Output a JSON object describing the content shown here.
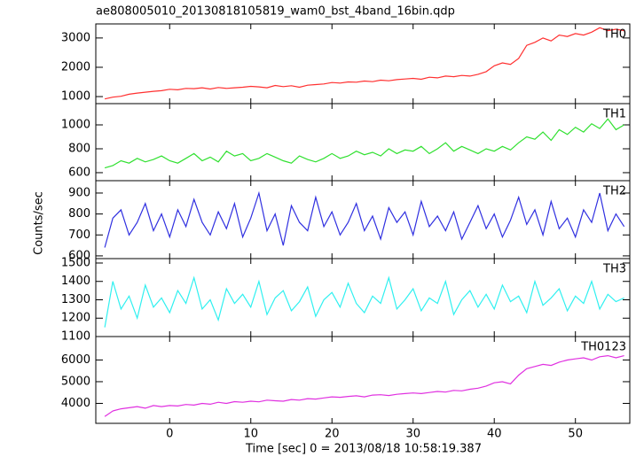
{
  "chart_data": {
    "type": "line",
    "title": "ae808005010_20130818105819_wam0_bst_4band_16bin.qdp",
    "xlabel": "Time [sec] 0 = 2013/08/18 10:58:19.387",
    "ylabel": "Counts/sec",
    "xlim": [
      -9.1,
      56.7
    ],
    "xticks": [
      0,
      10,
      20,
      30,
      40,
      50
    ],
    "x": [
      -8,
      -7,
      -6,
      -5,
      -4,
      -3,
      -2,
      -1,
      0,
      1,
      2,
      3,
      4,
      5,
      6,
      7,
      8,
      9,
      10,
      11,
      12,
      13,
      14,
      15,
      16,
      17,
      18,
      19,
      20,
      21,
      22,
      23,
      24,
      25,
      26,
      27,
      28,
      29,
      30,
      31,
      32,
      33,
      34,
      35,
      36,
      37,
      38,
      39,
      40,
      41,
      42,
      43,
      44,
      45,
      46,
      47,
      48,
      49,
      50,
      51,
      52,
      53,
      54,
      55,
      56
    ],
    "panels": [
      {
        "name": "TH0",
        "color": "#ff3030",
        "ylim": [
          760,
          3480
        ],
        "yticks": [
          1000,
          2000,
          3000
        ],
        "values": [
          920,
          980,
          1010,
          1080,
          1120,
          1150,
          1180,
          1200,
          1250,
          1230,
          1280,
          1270,
          1300,
          1260,
          1310,
          1280,
          1300,
          1320,
          1350,
          1330,
          1300,
          1380,
          1340,
          1370,
          1320,
          1390,
          1410,
          1430,
          1480,
          1460,
          1500,
          1490,
          1530,
          1510,
          1560,
          1540,
          1580,
          1600,
          1620,
          1590,
          1660,
          1640,
          1700,
          1680,
          1720,
          1700,
          1760,
          1850,
          2050,
          2150,
          2100,
          2300,
          2750,
          2850,
          3000,
          2900,
          3100,
          3050,
          3150,
          3100,
          3200,
          3350,
          3250,
          3300,
          3250
        ]
      },
      {
        "name": "TH1",
        "color": "#30e030",
        "ylim": [
          533,
          1178
        ],
        "yticks": [
          600,
          800,
          1000
        ],
        "values": [
          640,
          660,
          700,
          680,
          720,
          690,
          710,
          740,
          700,
          680,
          720,
          760,
          700,
          730,
          690,
          780,
          740,
          760,
          700,
          720,
          760,
          730,
          700,
          680,
          740,
          710,
          690,
          720,
          760,
          720,
          740,
          780,
          750,
          770,
          740,
          800,
          760,
          790,
          780,
          820,
          760,
          800,
          850,
          780,
          820,
          790,
          760,
          800,
          780,
          820,
          790,
          850,
          900,
          880,
          940,
          870,
          960,
          920,
          980,
          940,
          1010,
          970,
          1050,
          960,
          1000
        ]
      },
      {
        "name": "TH2",
        "color": "#3030e0",
        "ylim": [
          587,
          959
        ],
        "yticks": [
          600,
          700,
          800,
          900
        ],
        "values": [
          640,
          780,
          820,
          700,
          760,
          850,
          720,
          800,
          690,
          820,
          740,
          870,
          760,
          700,
          810,
          730,
          850,
          690,
          780,
          900,
          720,
          800,
          650,
          840,
          760,
          720,
          880,
          740,
          810,
          700,
          760,
          850,
          720,
          790,
          680,
          830,
          760,
          810,
          700,
          860,
          740,
          790,
          720,
          810,
          680,
          760,
          840,
          730,
          800,
          690,
          770,
          880,
          750,
          820,
          700,
          860,
          730,
          780,
          690,
          820,
          760,
          900,
          720,
          800,
          740
        ]
      },
      {
        "name": "TH3",
        "color": "#30f0f0",
        "ylim": [
          1100,
          1524
        ],
        "yticks": [
          1100,
          1200,
          1300,
          1400,
          1500
        ],
        "values": [
          1150,
          1400,
          1250,
          1320,
          1200,
          1380,
          1260,
          1310,
          1230,
          1350,
          1280,
          1420,
          1250,
          1300,
          1190,
          1360,
          1280,
          1330,
          1260,
          1400,
          1220,
          1310,
          1350,
          1240,
          1290,
          1370,
          1210,
          1300,
          1340,
          1260,
          1390,
          1280,
          1230,
          1320,
          1280,
          1420,
          1250,
          1300,
          1360,
          1240,
          1310,
          1280,
          1400,
          1220,
          1300,
          1350,
          1260,
          1330,
          1250,
          1380,
          1290,
          1320,
          1230,
          1400,
          1270,
          1310,
          1360,
          1240,
          1320,
          1280,
          1400,
          1250,
          1330,
          1290,
          1310
        ]
      },
      {
        "name": "TH0123",
        "color": "#e030e0",
        "ylim": [
          3080,
          7080
        ],
        "yticks": [
          4000,
          5000,
          6000
        ],
        "values": [
          3400,
          3650,
          3750,
          3800,
          3850,
          3780,
          3900,
          3850,
          3900,
          3880,
          3950,
          3920,
          4000,
          3960,
          4050,
          4000,
          4080,
          4050,
          4100,
          4070,
          4150,
          4120,
          4100,
          4180,
          4150,
          4220,
          4200,
          4250,
          4300,
          4280,
          4320,
          4350,
          4300,
          4380,
          4400,
          4360,
          4420,
          4450,
          4480,
          4450,
          4500,
          4550,
          4520,
          4600,
          4580,
          4650,
          4700,
          4800,
          4950,
          5000,
          4900,
          5300,
          5600,
          5700,
          5800,
          5750,
          5900,
          6000,
          6050,
          6100,
          6000,
          6150,
          6200,
          6100,
          6200
        ]
      }
    ]
  }
}
